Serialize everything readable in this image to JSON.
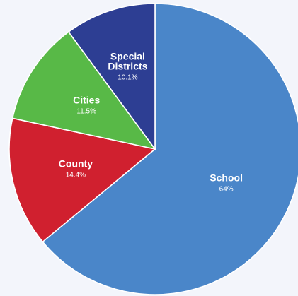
{
  "chart_data": {
    "type": "pie",
    "title": "",
    "start_angle_deg": 0,
    "direction": "clockwise",
    "legend": "none",
    "slices": [
      {
        "name_lines": [
          "School"
        ],
        "value": 64,
        "label": "64%",
        "color": "#4a86c9"
      },
      {
        "name_lines": [
          "County"
        ],
        "value": 14.4,
        "label": "14.4%",
        "color": "#d0202f"
      },
      {
        "name_lines": [
          "Cities"
        ],
        "value": 11.5,
        "label": "11.5%",
        "color": "#58b947"
      },
      {
        "name_lines": [
          "Special",
          "Districts"
        ],
        "value": 10.1,
        "label": "10.1%",
        "color": "#2d3e93"
      }
    ]
  }
}
